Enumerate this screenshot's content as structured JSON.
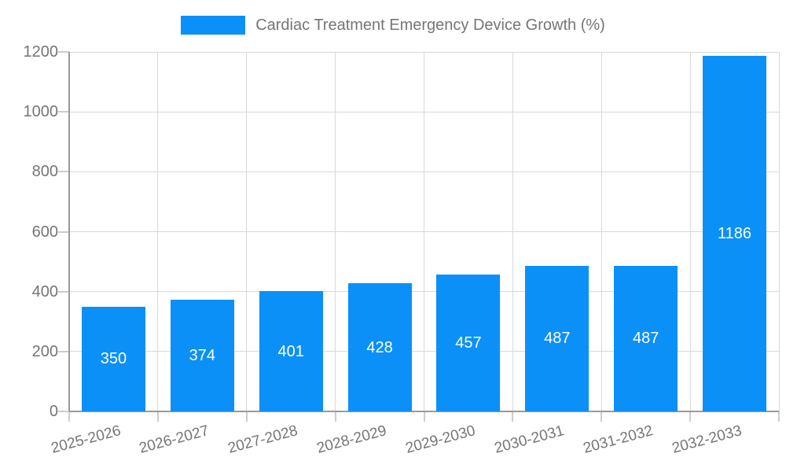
{
  "chart_data": {
    "type": "bar",
    "title": "Cardiac Treatment Emergency Device Growth (%)",
    "legend": {
      "label": "Cardiac Treatment Emergency Device Growth (%)",
      "position": "top-center"
    },
    "categories": [
      "2025-2026",
      "2026-2027",
      "2027-2028",
      "2028-2029",
      "2029-2030",
      "2030-2031",
      "2031-2032",
      "2032-2033"
    ],
    "values": [
      350,
      374,
      401,
      428,
      457,
      487,
      487,
      1186
    ],
    "value_labels": [
      "350",
      "374",
      "401",
      "428",
      "457",
      "487",
      "487",
      "1186"
    ],
    "xlabel": "",
    "ylabel": "",
    "ylim": [
      0,
      1200
    ],
    "yticks": [
      0,
      200,
      400,
      600,
      800,
      1000,
      1200
    ],
    "ytick_labels": [
      "0",
      "200",
      "400",
      "600",
      "800",
      "1000",
      "1200"
    ],
    "grid": true,
    "x_label_rotation_deg": -15,
    "colors": {
      "bar": "#0b90f8",
      "text": "#757575",
      "value_label": "#ffffff",
      "axis": "#999999",
      "grid": "#d9d9d9",
      "tick": "#cccccc",
      "background": "#ffffff"
    }
  }
}
